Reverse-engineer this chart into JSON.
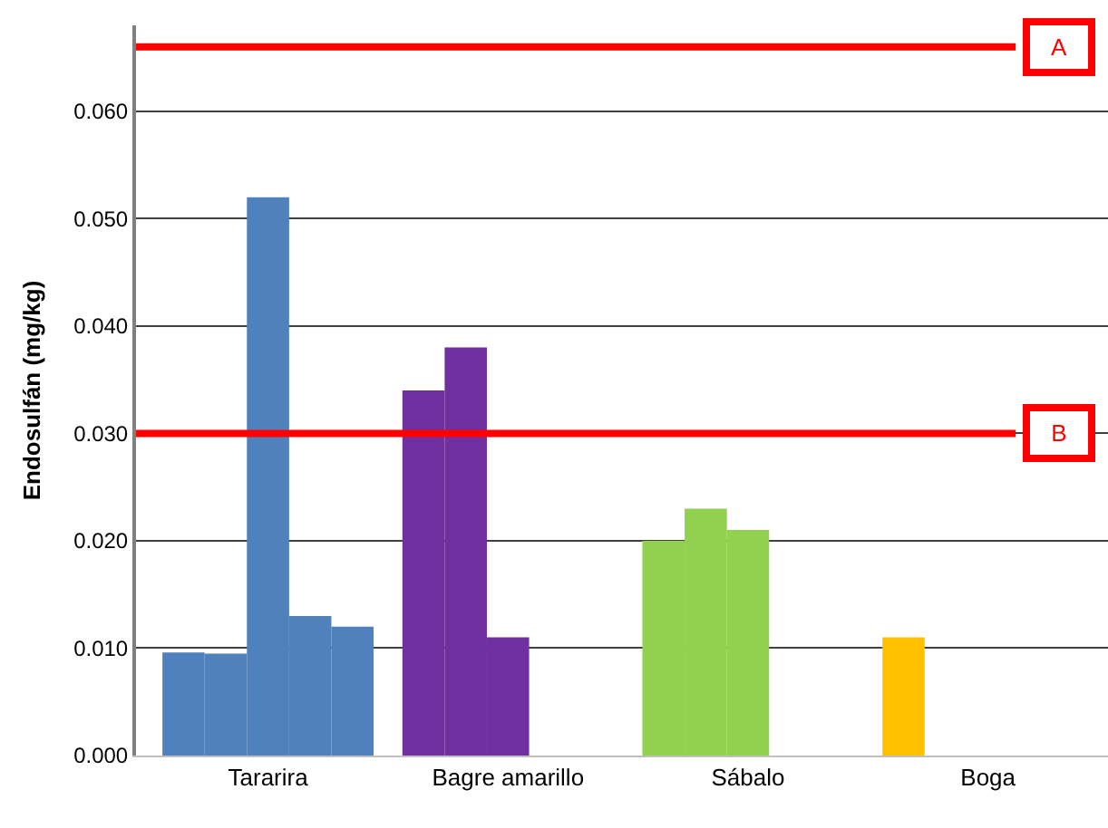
{
  "chart_data": {
    "type": "bar",
    "ylabel": "Endosulfán (mg/kg)",
    "categories": [
      "Tararira",
      "Bagre amarillo",
      "Sábalo",
      "Boga"
    ],
    "series": [
      {
        "colors": [
          "#4f81bd",
          "#7030a0",
          "#92d050",
          "#ffc000"
        ],
        "values": [
          0.0096,
          0.034,
          0.02,
          0.011
        ]
      },
      {
        "colors": [
          "#4f81bd",
          "#7030a0",
          "#92d050",
          "#ffc000"
        ],
        "values": [
          0.0095,
          0.038,
          0.023,
          null
        ]
      },
      {
        "colors": [
          "#4f81bd",
          "#7030a0",
          "#92d050",
          "#ffc000"
        ],
        "values": [
          0.052,
          0.011,
          0.021,
          null
        ]
      },
      {
        "colors": [
          "#4f81bd",
          "#7030a0",
          "#92d050",
          "#ffc000"
        ],
        "values": [
          0.013,
          null,
          null,
          null
        ]
      },
      {
        "colors": [
          "#4f81bd",
          "#7030a0",
          "#92d050",
          "#ffc000"
        ],
        "values": [
          0.012,
          null,
          null,
          null
        ]
      }
    ],
    "ylim": [
      0,
      0.068
    ],
    "yticks": [
      {
        "value": 0,
        "label": "0.000"
      },
      {
        "value": 0.01,
        "label": "0.010"
      },
      {
        "value": 0.02,
        "label": "0.020"
      },
      {
        "value": 0.03,
        "label": "0.030"
      },
      {
        "value": 0.04,
        "label": "0.040"
      },
      {
        "value": 0.05,
        "label": "0.050"
      },
      {
        "value": 0.06,
        "label": "0.060"
      }
    ],
    "ref_lines": [
      {
        "axis": "y",
        "value": 0.066,
        "label": "A",
        "color": "#ff0000"
      },
      {
        "axis": "y",
        "value": 0.03,
        "label": "B",
        "color": "#ff0000"
      }
    ],
    "grid": "y"
  }
}
